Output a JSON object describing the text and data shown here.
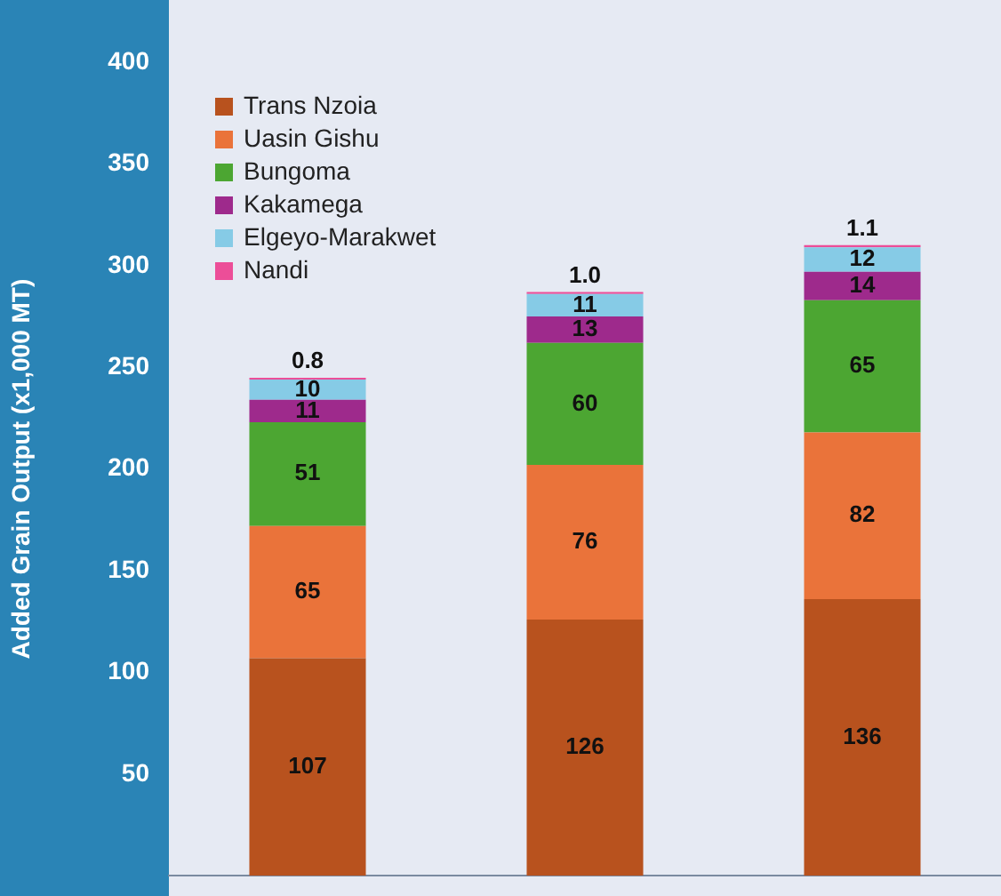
{
  "chart_data": {
    "type": "bar",
    "ylabel": "Added Grain Output (x1,000 MT)",
    "categories": [
      null,
      null,
      null
    ],
    "stacked": true,
    "data_labels": true,
    "legend": "top left",
    "grid": false,
    "ylim": [
      0,
      400
    ],
    "yticks": [
      50,
      100,
      150,
      200,
      250,
      300,
      350,
      400
    ],
    "series": [
      {
        "name": "Trans Nzoia",
        "color": "#b8521e",
        "values": [
          107,
          126,
          136
        ]
      },
      {
        "name": "Uasin Gishu",
        "color": "#ea733a",
        "values": [
          65,
          76,
          82
        ]
      },
      {
        "name": "Bungoma",
        "color": "#4ca632",
        "values": [
          51,
          60,
          65
        ]
      },
      {
        "name": "Kakamega",
        "color": "#9e2a8c",
        "values": [
          11,
          13,
          14
        ]
      },
      {
        "name": "Elgeyo-Marakwet",
        "color": "#86cbe6",
        "values": [
          10,
          11,
          12
        ]
      },
      {
        "name": "Nandi",
        "color": "#ec4e98",
        "values": [
          0.8,
          1.0,
          1.1
        ],
        "value_labels": [
          "0.8",
          "1.0",
          "1.1"
        ]
      }
    ]
  }
}
